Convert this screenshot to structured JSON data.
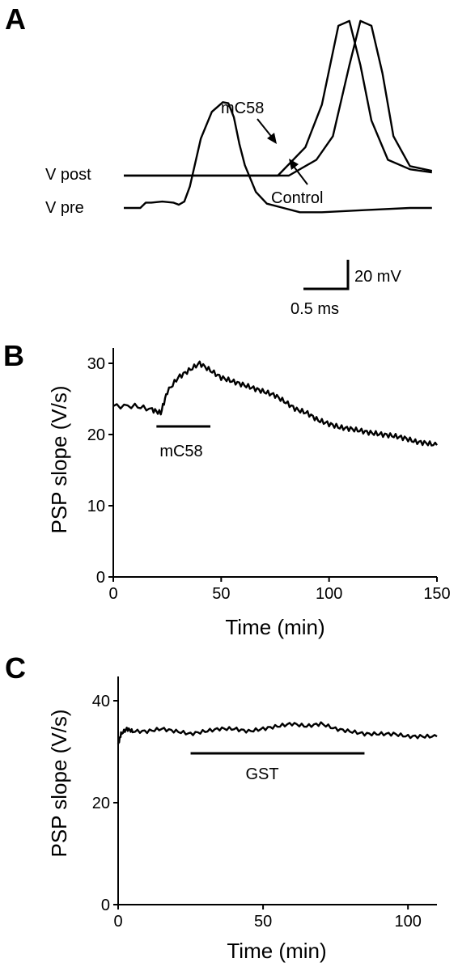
{
  "panels": {
    "a": {
      "label": "A"
    },
    "b": {
      "label": "B"
    },
    "c": {
      "label": "C"
    }
  },
  "chart_data": [
    {
      "panel": "A",
      "type": "line",
      "trace_labels": [
        "V post",
        "V pre"
      ],
      "annotations": [
        "mC58",
        "Control"
      ],
      "scale_bar": {
        "voltage_label": "20 mV",
        "time_label": "0.5 ms"
      },
      "series": [
        {
          "name": "V pre",
          "x": [
            0,
            0.15,
            0.2,
            0.25,
            0.35,
            0.45,
            0.5,
            0.55,
            0.6,
            0.7,
            0.8,
            0.9,
            0.95,
            1.0,
            1.05,
            1.1,
            1.2,
            1.3,
            1.45,
            1.6,
            1.8,
            2.2,
            2.6,
            2.8
          ],
          "y": [
            0,
            0,
            5,
            5,
            6,
            5,
            3,
            6,
            20,
            65,
            90,
            99,
            98,
            85,
            60,
            40,
            15,
            4,
            0,
            -4,
            -4,
            -2,
            0,
            0
          ]
        },
        {
          "name": "V post (Control)",
          "x": [
            0,
            1.5,
            1.75,
            1.9,
            2.05,
            2.15,
            2.25,
            2.35,
            2.45,
            2.6,
            2.8
          ],
          "y": [
            0,
            0,
            10,
            25,
            70,
            98,
            95,
            65,
            25,
            6,
            3
          ]
        },
        {
          "name": "V post (mC58)",
          "x": [
            0,
            1.4,
            1.65,
            1.8,
            1.95,
            2.05,
            2.15,
            2.25,
            2.4,
            2.6,
            2.8
          ],
          "y": [
            0,
            0,
            18,
            45,
            95,
            98,
            70,
            35,
            10,
            4,
            2
          ]
        }
      ]
    },
    {
      "panel": "B",
      "type": "line",
      "ylabel": "PSP slope (V/s)",
      "xlabel": "Time (min)",
      "xlim": [
        0,
        150
      ],
      "ylim": [
        0,
        30
      ],
      "x_ticks": [
        0,
        50,
        100,
        150
      ],
      "y_ticks": [
        0,
        10,
        20,
        30
      ],
      "annotation": {
        "label": "mC58",
        "x_start": 20,
        "x_end": 45
      },
      "series": [
        {
          "x": [
            0,
            10,
            18,
            22,
            25,
            30,
            35,
            40,
            45,
            50,
            55,
            60,
            65,
            70,
            75,
            80,
            85,
            90,
            95,
            100,
            105,
            110,
            115,
            120,
            125,
            130,
            135,
            140,
            145,
            150
          ],
          "y": [
            24,
            24,
            23.5,
            23,
            26,
            28,
            29,
            30,
            29,
            28,
            27.5,
            27,
            26.5,
            26,
            25.5,
            24.5,
            23.5,
            23,
            22,
            21.5,
            21,
            20.8,
            20.5,
            20.2,
            20,
            19.8,
            19.5,
            19,
            18.8,
            18.5
          ]
        }
      ]
    },
    {
      "panel": "C",
      "type": "line",
      "ylabel": "PSP slope (V/s)",
      "xlabel": "Time (min)",
      "xlim": [
        0,
        110
      ],
      "ylim": [
        0,
        40
      ],
      "x_ticks": [
        0,
        50,
        100
      ],
      "y_ticks": [
        0,
        20,
        40
      ],
      "annotation": {
        "label": "GST",
        "x_start": 25,
        "x_end": 85
      },
      "series": [
        {
          "x": [
            0,
            1,
            3,
            5,
            10,
            15,
            20,
            25,
            30,
            35,
            40,
            45,
            50,
            55,
            60,
            65,
            70,
            75,
            80,
            85,
            90,
            95,
            100,
            105,
            110
          ],
          "y": [
            31.5,
            33.5,
            34.5,
            34,
            34,
            34.5,
            34,
            33.5,
            34,
            34.5,
            34.5,
            34,
            34.5,
            35,
            35.5,
            35,
            35.5,
            34.5,
            34,
            33.5,
            33.5,
            33.5,
            33,
            33,
            33
          ]
        }
      ]
    }
  ]
}
